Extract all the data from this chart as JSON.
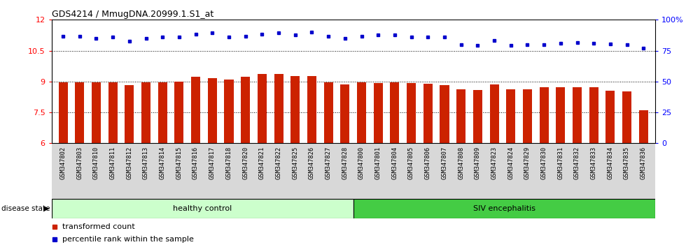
{
  "title": "GDS4214 / MmugDNA.20999.1.S1_at",
  "samples": [
    "GSM347802",
    "GSM347803",
    "GSM347810",
    "GSM347811",
    "GSM347812",
    "GSM347813",
    "GSM347814",
    "GSM347815",
    "GSM347816",
    "GSM347817",
    "GSM347818",
    "GSM347820",
    "GSM347821",
    "GSM347822",
    "GSM347825",
    "GSM347826",
    "GSM347827",
    "GSM347828",
    "GSM347800",
    "GSM347801",
    "GSM347804",
    "GSM347805",
    "GSM347806",
    "GSM347807",
    "GSM347808",
    "GSM347809",
    "GSM347823",
    "GSM347824",
    "GSM347829",
    "GSM347830",
    "GSM347831",
    "GSM347832",
    "GSM347833",
    "GSM347834",
    "GSM347835",
    "GSM347836"
  ],
  "bar_values": [
    8.97,
    8.96,
    8.95,
    8.96,
    8.82,
    8.95,
    8.95,
    9.0,
    9.22,
    9.18,
    9.08,
    9.22,
    9.35,
    9.35,
    9.25,
    9.28,
    8.95,
    8.85,
    8.95,
    8.92,
    8.95,
    8.92,
    8.88,
    8.83,
    8.62,
    8.6,
    8.85,
    8.62,
    8.62,
    8.72,
    8.72,
    8.72,
    8.72,
    8.55,
    8.52,
    7.62
  ],
  "dot_values": [
    11.2,
    11.2,
    11.1,
    11.15,
    10.95,
    11.1,
    11.15,
    11.15,
    11.3,
    11.35,
    11.15,
    11.2,
    11.3,
    11.35,
    11.25,
    11.4,
    11.2,
    11.1,
    11.2,
    11.25,
    11.25,
    11.15,
    11.15,
    11.15,
    10.8,
    10.75,
    11.0,
    10.75,
    10.78,
    10.78,
    10.85,
    10.9,
    10.85,
    10.82,
    10.8,
    10.62
  ],
  "healthy_control_count": 18,
  "bar_color": "#cc2200",
  "dot_color": "#0000cc",
  "ylim_left": [
    6,
    12
  ],
  "yticks_left": [
    6,
    7.5,
    9,
    10.5,
    12
  ],
  "yticks_left_labels": [
    "6",
    "7.5",
    "9",
    "10.5",
    "12"
  ],
  "yticks_right_positions": [
    6,
    7.5,
    9,
    10.5,
    12
  ],
  "yticks_right_labels": [
    "0",
    "25",
    "50",
    "75",
    "100%"
  ],
  "healthy_bg": "#ccffcc",
  "siv_bg": "#44cc44",
  "healthy_label": "healthy control",
  "siv_label": "SIV encephalitis",
  "disease_state_label": "disease state",
  "legend_bar_label": "transformed count",
  "legend_dot_label": "percentile rank within the sample",
  "dotted_lines": [
    7.5,
    9.0,
    10.5
  ],
  "xtick_bg": "#d8d8d8"
}
